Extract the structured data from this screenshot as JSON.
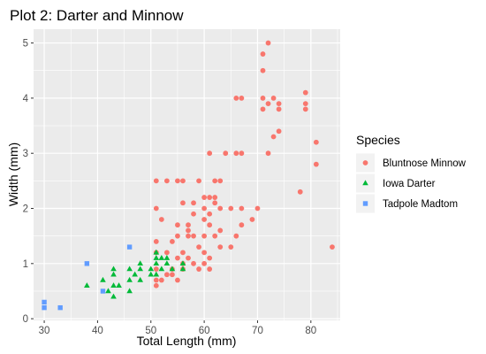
{
  "chart_data": {
    "type": "scatter",
    "title": "Plot 2: Darter and Minnow",
    "xlabel": "Total Length (mm)",
    "ylabel": "Width (mm)",
    "xlim": [
      28,
      85.5
    ],
    "ylim": [
      -0.03,
      5.25
    ],
    "x_ticks": [
      30,
      40,
      50,
      60,
      70,
      80
    ],
    "y_ticks": [
      0,
      1,
      2,
      3,
      4,
      5
    ],
    "x_tick_labels": [
      "30",
      "40",
      "50",
      "60",
      "70",
      "80"
    ],
    "y_tick_labels": [
      "0",
      "1",
      "2",
      "3",
      "4",
      "5"
    ],
    "grid": true,
    "legend": {
      "title": "Species",
      "position": "right"
    },
    "series": [
      {
        "name": "Bluntnose Minnow",
        "color": "#F8766D",
        "shape": "circle",
        "points": [
          [
            72,
            5.0
          ],
          [
            71,
            4.8
          ],
          [
            71,
            4.5
          ],
          [
            66,
            4.0
          ],
          [
            67,
            4.0
          ],
          [
            71,
            4.0
          ],
          [
            73,
            4.0
          ],
          [
            74,
            3.9
          ],
          [
            79,
            4.1
          ],
          [
            72,
            3.9
          ],
          [
            79,
            3.9
          ],
          [
            71,
            3.8
          ],
          [
            74,
            3.8
          ],
          [
            79,
            3.8
          ],
          [
            74,
            3.4
          ],
          [
            73,
            3.3
          ],
          [
            81,
            3.2
          ],
          [
            61,
            3.0
          ],
          [
            64,
            3.0
          ],
          [
            66,
            3.0
          ],
          [
            67,
            3.0
          ],
          [
            72,
            3.0
          ],
          [
            81,
            2.8
          ],
          [
            51,
            2.5
          ],
          [
            53,
            2.5
          ],
          [
            55,
            2.5
          ],
          [
            56,
            2.5
          ],
          [
            59,
            2.5
          ],
          [
            62,
            2.5
          ],
          [
            63,
            2.5
          ],
          [
            78,
            2.3
          ],
          [
            60,
            2.2
          ],
          [
            61,
            2.2
          ],
          [
            62,
            2.2
          ],
          [
            56,
            2.1
          ],
          [
            58,
            2.1
          ],
          [
            62,
            2.1
          ],
          [
            63,
            2.0
          ],
          [
            60,
            2.0
          ],
          [
            65,
            2.0
          ],
          [
            67,
            2.0
          ],
          [
            70,
            2.0
          ],
          [
            51,
            2.0
          ],
          [
            58,
            1.9
          ],
          [
            60,
            1.8
          ],
          [
            61,
            1.9
          ],
          [
            52,
            1.8
          ],
          [
            55,
            1.7
          ],
          [
            57,
            1.7
          ],
          [
            61,
            1.7
          ],
          [
            57,
            1.6
          ],
          [
            63,
            1.6
          ],
          [
            69,
            1.8
          ],
          [
            67,
            1.7
          ],
          [
            55,
            1.5
          ],
          [
            57,
            1.5
          ],
          [
            58,
            1.5
          ],
          [
            60,
            1.5
          ],
          [
            62,
            1.5
          ],
          [
            66,
            1.5
          ],
          [
            51,
            1.4
          ],
          [
            54,
            1.4
          ],
          [
            59,
            1.3
          ],
          [
            63,
            1.3
          ],
          [
            65,
            1.3
          ],
          [
            84,
            1.3
          ],
          [
            51,
            1.2
          ],
          [
            53,
            1.2
          ],
          [
            56,
            1.2
          ],
          [
            60,
            1.2
          ],
          [
            55,
            1.1
          ],
          [
            57,
            1.1
          ],
          [
            61,
            1.1
          ],
          [
            60,
            1.0
          ],
          [
            56,
            1.0
          ],
          [
            58,
            1.0
          ],
          [
            51,
            0.9
          ],
          [
            54,
            0.9
          ],
          [
            56,
            0.9
          ],
          [
            59,
            0.9
          ],
          [
            61,
            0.9
          ],
          [
            53,
            0.8
          ],
          [
            54,
            0.8
          ],
          [
            51,
            0.7
          ],
          [
            52,
            0.7
          ],
          [
            55,
            0.7
          ],
          [
            51,
            0.6
          ]
        ]
      },
      {
        "name": "Iowa Darter",
        "color": "#00BA38",
        "shape": "triangle",
        "points": [
          [
            38,
            0.6
          ],
          [
            41,
            0.7
          ],
          [
            42,
            0.5
          ],
          [
            43,
            0.4
          ],
          [
            43,
            0.6
          ],
          [
            43,
            0.9
          ],
          [
            44,
            0.6
          ],
          [
            43,
            0.8
          ],
          [
            46,
            0.5
          ],
          [
            46,
            0.7
          ],
          [
            46,
            0.9
          ],
          [
            47,
            0.8
          ],
          [
            48,
            0.7
          ],
          [
            48,
            0.9
          ],
          [
            48,
            1.0
          ],
          [
            50,
            0.8
          ],
          [
            50,
            0.9
          ],
          [
            51,
            0.8
          ],
          [
            51,
            1.0
          ],
          [
            51,
            1.1
          ],
          [
            51,
            1.2
          ],
          [
            52,
            0.9
          ],
          [
            52,
            1.1
          ],
          [
            53,
            1.0
          ],
          [
            53,
            1.1
          ],
          [
            54,
            0.9
          ],
          [
            56,
            0.9
          ],
          [
            56,
            1.0
          ]
        ]
      },
      {
        "name": "Tadpole Madtom",
        "color": "#619CFF",
        "shape": "square",
        "points": [
          [
            30,
            0.2
          ],
          [
            30,
            0.3
          ],
          [
            33,
            0.2
          ],
          [
            38,
            1.0
          ],
          [
            41,
            0.5
          ],
          [
            46,
            1.3
          ]
        ]
      }
    ]
  }
}
